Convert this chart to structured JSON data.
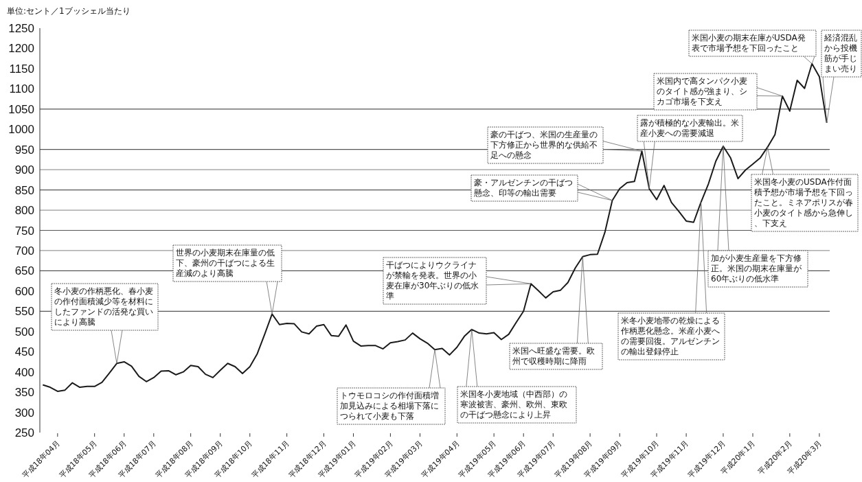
{
  "chart_data": {
    "type": "line",
    "ylabel": "単位:セント／1ブッシェル当たり",
    "categories": [
      null,
      null,
      "平成18年04月",
      null,
      null,
      null,
      null,
      "平成18年05月",
      null,
      null,
      null,
      "平成18年06月",
      null,
      null,
      null,
      "平成18年07月",
      null,
      null,
      null,
      null,
      "平成18年08月",
      null,
      null,
      null,
      "平成18年09月",
      null,
      null,
      null,
      "平成18年10月",
      null,
      null,
      null,
      null,
      "平成18年11月",
      null,
      null,
      null,
      null,
      "平成18年12月",
      null,
      null,
      null,
      "平成19年01月",
      null,
      null,
      null,
      null,
      "平成19年02月",
      null,
      null,
      null,
      "平成19年03月",
      null,
      null,
      null,
      null,
      "平成19年04月",
      null,
      null,
      null,
      null,
      "平成19年05月",
      null,
      null,
      null,
      "平成19年06月",
      null,
      null,
      null,
      "平成19年07月",
      null,
      null,
      null,
      null,
      "平成19年08月",
      null,
      null,
      null,
      "平成19年09月",
      null,
      null,
      null,
      null,
      "平成19年10月",
      null,
      null,
      null,
      "平成19年11月",
      null,
      null,
      null,
      null,
      "平成19年12月",
      null,
      null,
      null,
      "平成20年1月",
      null,
      null,
      null,
      null,
      "平成20年2月",
      null,
      null,
      null,
      "平成20年3月",
      null
    ],
    "values": [
      368,
      362,
      352,
      355,
      373,
      362,
      364,
      364,
      374,
      397,
      421,
      425,
      414,
      389,
      376,
      386,
      402,
      403,
      393,
      400,
      416,
      413,
      394,
      386,
      404,
      421,
      413,
      396,
      413,
      445,
      493,
      543,
      517,
      520,
      519,
      499,
      494,
      513,
      517,
      490,
      488,
      516,
      476,
      464,
      465,
      465,
      457,
      472,
      475,
      479,
      496,
      482,
      471,
      455,
      458,
      442,
      461,
      488,
      505,
      496,
      494,
      497,
      480,
      493,
      522,
      550,
      618,
      601,
      583,
      598,
      602,
      621,
      657,
      685,
      690,
      691,
      745,
      824,
      853,
      868,
      871,
      946,
      853,
      826,
      861,
      819,
      797,
      773,
      770,
      820,
      865,
      921,
      958,
      929,
      878,
      899,
      914,
      929,
      956,
      987,
      1082,
      1045,
      1121,
      1101,
      1162,
      1130,
      1016
    ],
    "color": "#1a1a1a",
    "marker": "none",
    "line_style": "solid",
    "grid": false,
    "ylim": [
      250,
      1250
    ],
    "yticks": [
      250,
      300,
      350,
      400,
      450,
      500,
      550,
      600,
      650,
      700,
      750,
      800,
      850,
      900,
      950,
      1000,
      1050,
      1100,
      1150,
      1200,
      1250
    ],
    "ref_lines": [
      {
        "axis": "y",
        "value": 550,
        "color": "#555555"
      },
      {
        "axis": "y",
        "value": 650,
        "color": "#555555"
      },
      {
        "axis": "y",
        "value": 700,
        "color": "#999999"
      },
      {
        "axis": "y",
        "value": 750,
        "color": "#555555"
      },
      {
        "axis": "y",
        "value": 800,
        "color": "#999999"
      },
      {
        "axis": "y",
        "value": 850,
        "color": "#555555"
      },
      {
        "axis": "y",
        "value": 900,
        "color": "#999999"
      },
      {
        "axis": "y",
        "value": 950,
        "color": "#555555"
      },
      {
        "axis": "y",
        "value": 1050,
        "color": "#555555"
      }
    ],
    "annotations": [
      "冬小麦の作柄悪化、春小麦の作付面積減少等を材料にしたファンドの活発な買いにより高騰",
      "世界の小麦期末在庫量の低下、豪州の干ばつによる生産減のより高騰",
      "トウモロコシの作付面積増加見込みによる相場下落につられて小麦も下落",
      "米国冬小麦地域（中西部）の寒波被害、豪州、欧州、東欧の干ばつ懸念により上昇",
      "干ばつによりウクライナが禁輸を発表。世界の小麦在庫が30年ぶりの低水準",
      "米国へ旺盛な需要。欧州で収穫時期に降雨",
      "豪・アルゼンチンの干ばつ懸念、印等の輸出需要",
      "豪の干ばつ、米国の生産量の下方修正から世界的な供給不足への懸念",
      "露が積極的な小麦輸出。米産小麦への需要減退",
      "米冬小麦地帯の乾燥による作柄悪化懸念。米産小麦への需要回復。アルゼンチンの輸出登録停止",
      "加が小麦生産量を下方修正。米国の期末在庫量が60年ぶりの低水準",
      "米国冬小麦のUSDA作付面積予想が市場予想を下回ったこと。ミネアポリスが春小麦のタイト感から急伸し、下支え",
      "米国内で高タンパク小麦のタイト感が強まり、シカゴ市場を下支え",
      "米国小麦の期末在庫がUSDA発表で市場予想を下回ったこと",
      "経済混乱から投機筋が手じまい売り"
    ]
  }
}
